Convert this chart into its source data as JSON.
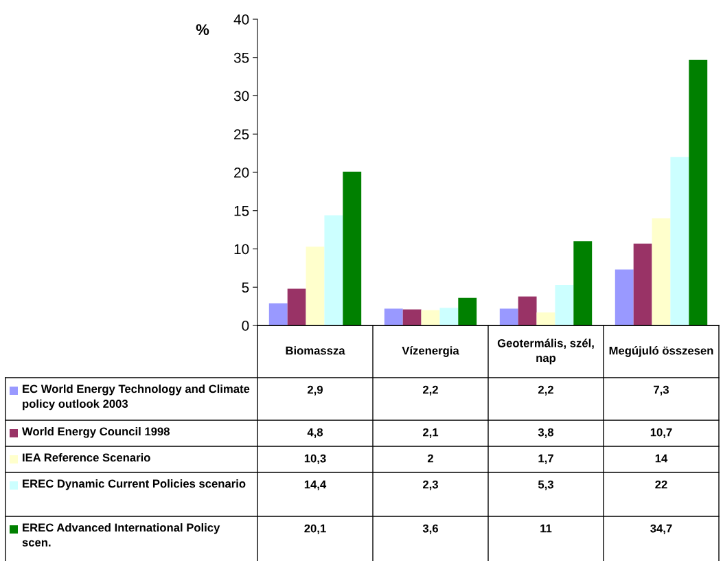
{
  "chart_data": {
    "type": "bar",
    "ylabel": "%",
    "categories": [
      "Biomassza",
      "Vízenergia",
      "Geotermális, szél, nap",
      "Megújuló összesen"
    ],
    "series": [
      {
        "name": "EC World Energy Technology and Climate policy outlook 2003",
        "color": "#9999ff",
        "values": [
          2.9,
          2.2,
          2.2,
          7.3
        ],
        "value_labels": [
          "2,9",
          "2,2",
          "2,2",
          "7,3"
        ]
      },
      {
        "name": "World Energy Council 1998",
        "color": "#993366",
        "values": [
          4.8,
          2.1,
          3.8,
          10.7
        ],
        "value_labels": [
          "4,8",
          "2,1",
          "3,8",
          "10,7"
        ]
      },
      {
        "name": "IEA Reference Scenario",
        "color": "#ffffcc",
        "values": [
          10.3,
          2,
          1.7,
          14
        ],
        "value_labels": [
          "10,3",
          "2",
          "1,7",
          "14"
        ]
      },
      {
        "name": "EREC Dynamic Current Policies scenario",
        "color": "#ccffff",
        "values": [
          14.4,
          2.3,
          5.3,
          22
        ],
        "value_labels": [
          "14,4",
          "2,3",
          "5,3",
          "22"
        ]
      },
      {
        "name": "EREC Advanced International Policy scen.",
        "color": "#008000",
        "values": [
          20.1,
          3.6,
          11,
          34.7
        ],
        "value_labels": [
          "20,1",
          "3,6",
          "11",
          "34,7"
        ]
      }
    ],
    "ylim": [
      0,
      40
    ],
    "yticks": [
      0,
      5,
      10,
      15,
      20,
      25,
      30,
      35,
      40
    ],
    "grid": false,
    "legend": "bottom"
  }
}
